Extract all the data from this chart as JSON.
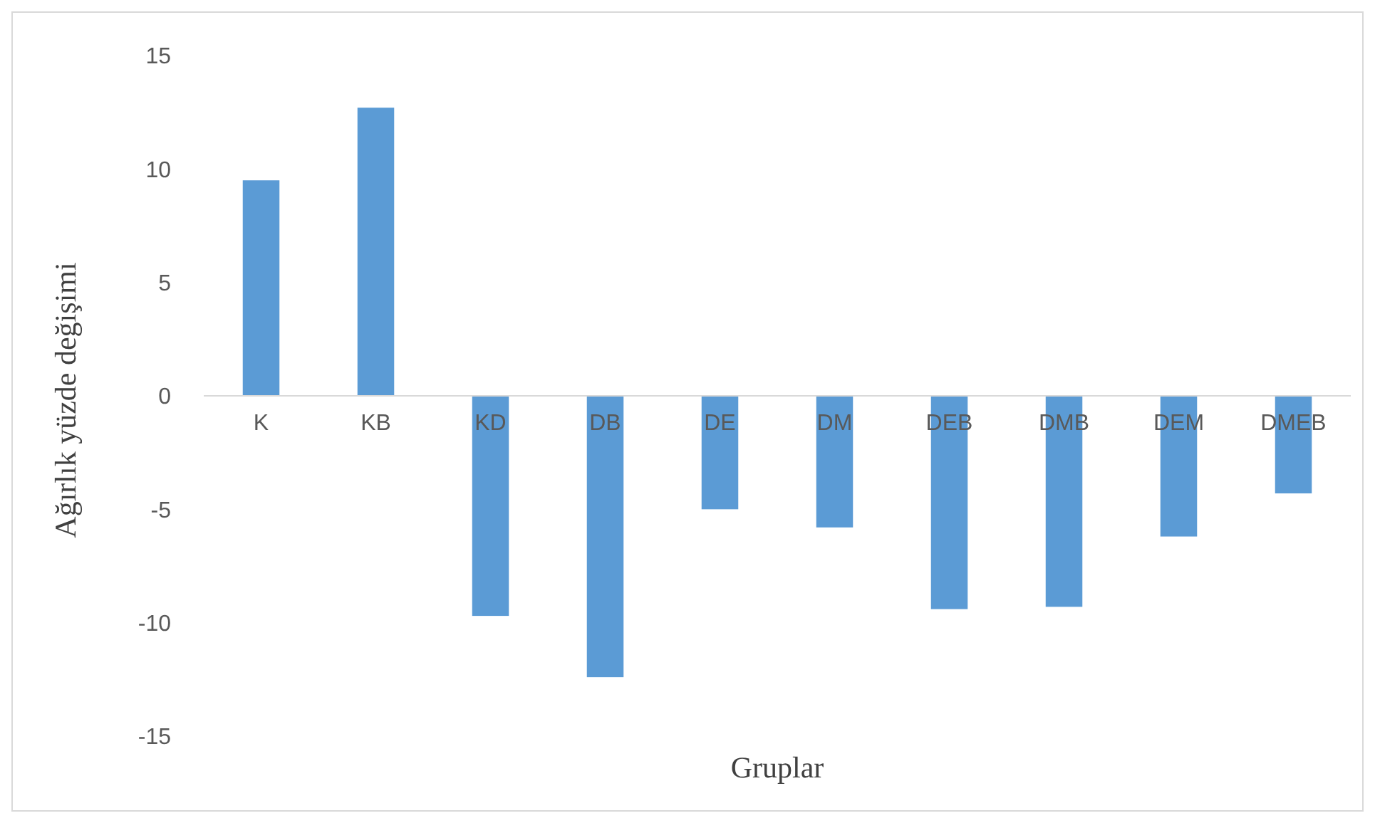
{
  "chart_data": {
    "type": "bar",
    "xlabel": "Gruplar",
    "ylabel": "Ağırlık yüzde değişimi",
    "categories": [
      "K",
      "KB",
      "KD",
      "DB",
      "DE",
      "DM",
      "DEB",
      "DMB",
      "DEM",
      "DMEB"
    ],
    "series": [
      {
        "color": "#5b9bd5",
        "values": [
          9.5,
          12.7,
          -9.7,
          -12.4,
          -5,
          -5.8,
          -9.4,
          -9.3,
          -6.2,
          -4.3
        ]
      }
    ],
    "ylim": [
      -15,
      15
    ],
    "yticks": [
      -15,
      -10,
      -5,
      0,
      5,
      10,
      15
    ],
    "grid": false
  }
}
